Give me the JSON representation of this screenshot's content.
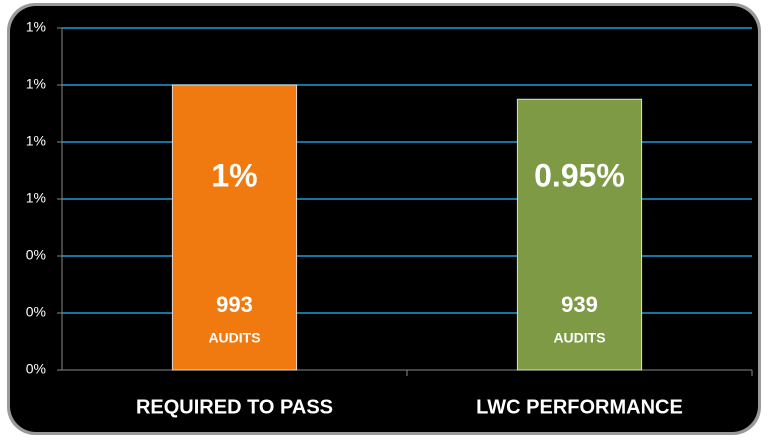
{
  "chart_data": {
    "type": "bar",
    "categories": [
      "REQUIRED TO PASS",
      "LWC PERFORMANCE"
    ],
    "values": [
      1,
      0.95
    ],
    "value_labels": [
      "1%",
      "0.95%"
    ],
    "colors": [
      "#f07a10",
      "#7f9a45"
    ],
    "audits": {
      "values": [
        993,
        939
      ],
      "labels": [
        "AUDITS",
        "AUDITS"
      ]
    },
    "ylim": [
      0,
      1.2
    ],
    "yticks": [
      {
        "value": 0,
        "label": "0%"
      },
      {
        "value": 0.2,
        "label": "0%"
      },
      {
        "value": 0.4,
        "label": "0%"
      },
      {
        "value": 0.6,
        "label": "1%"
      },
      {
        "value": 0.8,
        "label": "1%"
      },
      {
        "value": 1.0,
        "label": "1%"
      },
      {
        "value": 1.2,
        "label": "1%"
      }
    ],
    "grid": true
  }
}
